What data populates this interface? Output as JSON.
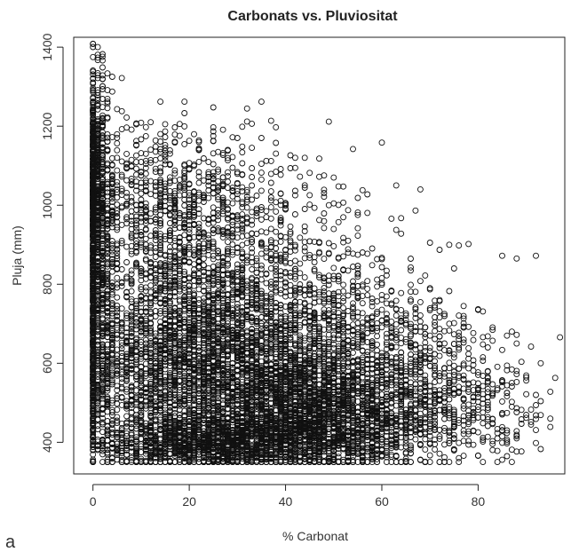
{
  "chart_data": {
    "type": "scatter",
    "title": "Carbonats vs. Pluviositat",
    "xlabel": "% Carbonat",
    "ylabel": "Pluja (mm)",
    "panel_label": "a",
    "xlim": [
      -4,
      98
    ],
    "ylim": [
      320,
      1425
    ],
    "x_ticks": [
      0,
      20,
      40,
      60,
      80
    ],
    "y_ticks": [
      400,
      600,
      800,
      1000,
      1200,
      1400
    ],
    "marker": "open-circle",
    "marker_color": "#111111",
    "point_count_note": "",
    "series": [
      {
        "values": [
          {
            "x": 1,
            "y": 1400
          },
          {
            "x": 0,
            "y": 1375
          },
          {
            "x": 0,
            "y": 1320
          },
          {
            "x": 2,
            "y": 1320
          },
          {
            "x": 4,
            "y": 1325
          },
          {
            "x": 6,
            "y": 1322
          },
          {
            "x": 0,
            "y": 1290
          },
          {
            "x": 1,
            "y": 1285
          },
          {
            "x": 0,
            "y": 1260
          },
          {
            "x": 14,
            "y": 1262
          },
          {
            "x": 19,
            "y": 1262
          },
          {
            "x": 35,
            "y": 1262
          },
          {
            "x": 6,
            "y": 1238
          },
          {
            "x": 7,
            "y": 1222
          },
          {
            "x": 2,
            "y": 1210
          },
          {
            "x": 9,
            "y": 1205
          },
          {
            "x": 12,
            "y": 1210
          },
          {
            "x": 17,
            "y": 1197
          },
          {
            "x": 25,
            "y": 1187
          },
          {
            "x": 14,
            "y": 1180
          },
          {
            "x": 30,
            "y": 1170
          },
          {
            "x": 35,
            "y": 1170
          },
          {
            "x": 22,
            "y": 1160
          },
          {
            "x": 28,
            "y": 1140
          },
          {
            "x": 42,
            "y": 1120
          },
          {
            "x": 44,
            "y": 1120
          },
          {
            "x": 47,
            "y": 1118
          },
          {
            "x": 37,
            "y": 1112
          },
          {
            "x": 50,
            "y": 1070
          },
          {
            "x": 56,
            "y": 1038
          },
          {
            "x": 68,
            "y": 1040
          },
          {
            "x": 49,
            "y": 1000
          },
          {
            "x": 62,
            "y": 966
          },
          {
            "x": 70,
            "y": 905
          },
          {
            "x": 74,
            "y": 900
          },
          {
            "x": 78,
            "y": 902
          },
          {
            "x": 76,
            "y": 898
          },
          {
            "x": 72,
            "y": 887
          },
          {
            "x": 85,
            "y": 872
          },
          {
            "x": 92,
            "y": 872
          },
          {
            "x": 88,
            "y": 865
          },
          {
            "x": 68,
            "y": 808
          },
          {
            "x": 75,
            "y": 840
          },
          {
            "x": 70,
            "y": 790
          },
          {
            "x": 72,
            "y": 760
          },
          {
            "x": 77,
            "y": 745
          },
          {
            "x": 74,
            "y": 700
          },
          {
            "x": 86,
            "y": 670
          },
          {
            "x": 88,
            "y": 672
          },
          {
            "x": 91,
            "y": 642
          },
          {
            "x": 82,
            "y": 640
          },
          {
            "x": 93,
            "y": 600
          },
          {
            "x": 95,
            "y": 528
          },
          {
            "x": 92,
            "y": 520
          },
          {
            "x": 90,
            "y": 462
          },
          {
            "x": 95,
            "y": 460
          },
          {
            "x": 85,
            "y": 430
          },
          {
            "x": 88,
            "y": 410
          },
          {
            "x": 76,
            "y": 360
          },
          {
            "x": 68,
            "y": 355
          },
          {
            "x": 58,
            "y": 360
          },
          {
            "x": 40,
            "y": 355
          },
          {
            "x": 30,
            "y": 352
          },
          {
            "x": 22,
            "y": 350
          },
          {
            "x": 25,
            "y": 355
          }
        ]
      }
    ],
    "density_clusters": [
      {
        "x_center": 1,
        "y_center": 880,
        "x_spread": 1.5,
        "y_spread": 230,
        "n": 900
      },
      {
        "x_center": 0,
        "y_center": 1080,
        "x_spread": 0.8,
        "y_spread": 80,
        "n": 250
      },
      {
        "x_center": 26,
        "y_center": 580,
        "x_spread": 14,
        "y_spread": 110,
        "n": 2600
      },
      {
        "x_center": 26,
        "y_center": 400,
        "x_spread": 12,
        "y_spread": 35,
        "n": 1500
      },
      {
        "x_center": 45,
        "y_center": 470,
        "x_spread": 9,
        "y_spread": 70,
        "n": 1200
      },
      {
        "x_center": 18,
        "y_center": 800,
        "x_spread": 12,
        "y_spread": 160,
        "n": 1000
      },
      {
        "x_center": 35,
        "y_center": 780,
        "x_spread": 12,
        "y_spread": 170,
        "n": 800
      },
      {
        "x_center": 15,
        "y_center": 1020,
        "x_spread": 10,
        "y_spread": 90,
        "n": 450
      },
      {
        "x_center": 58,
        "y_center": 600,
        "x_spread": 9,
        "y_spread": 120,
        "n": 700
      },
      {
        "x_center": 58,
        "y_center": 430,
        "x_spread": 9,
        "y_spread": 50,
        "n": 450
      },
      {
        "x_center": 72,
        "y_center": 540,
        "x_spread": 9,
        "y_spread": 90,
        "n": 350
      },
      {
        "x_center": 82,
        "y_center": 470,
        "x_spread": 6,
        "y_spread": 60,
        "n": 120
      }
    ]
  }
}
